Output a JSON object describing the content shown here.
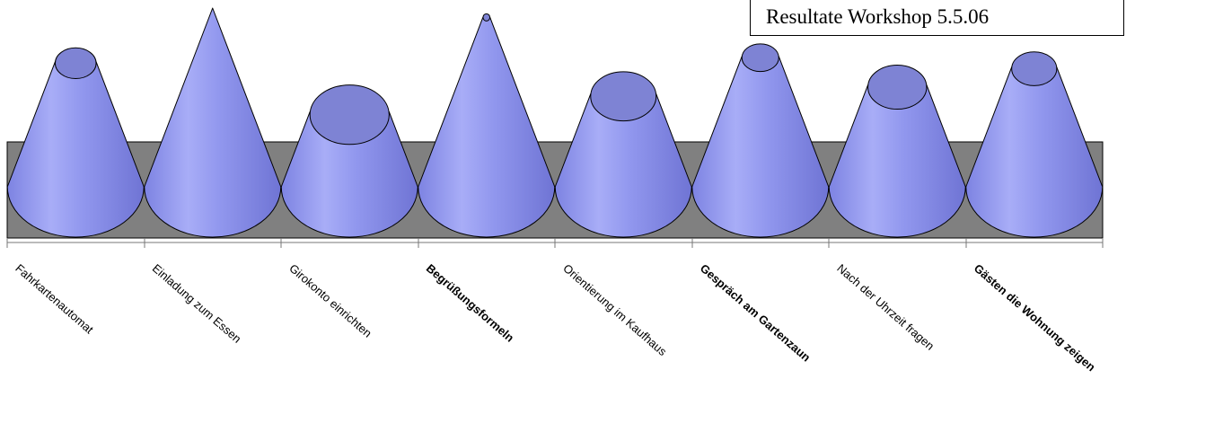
{
  "chart_data": {
    "type": "cone",
    "title": "Resultate Workshop 5.5.06",
    "categories": [
      "Fahrkartenautomat",
      "Einladung zum Essen",
      "Girokonto einrichten",
      "Begrüßungsformeln",
      "Orientierung im Kaufhaus",
      "Gespräch am Gartenzaun",
      "Nach der Uhrzeit fragen",
      "Gästen die Wohnung zeigen"
    ],
    "bold_categories": [
      "Begrüßungsformeln",
      "Gespräch am Gartenzaun",
      "Gästen die Wohnung zeigen"
    ],
    "values": [
      0.7,
      1.0,
      0.42,
      0.95,
      0.52,
      0.73,
      0.57,
      0.67
    ],
    "ylim": [
      0,
      1
    ],
    "grid": false,
    "legend": "none"
  },
  "colors": {
    "cone_fill": "#8d93ee",
    "cone_top": "#7e83d4",
    "floor": "#808080"
  }
}
